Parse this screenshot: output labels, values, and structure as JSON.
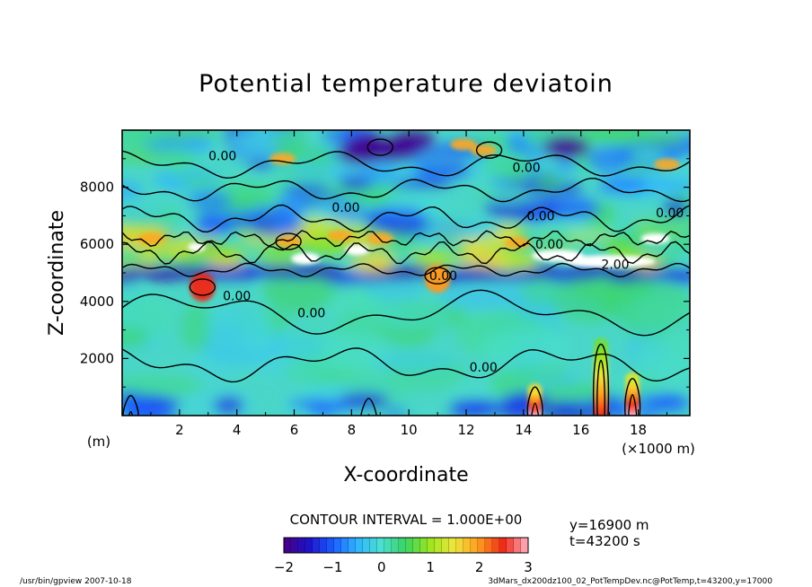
{
  "chart_data": {
    "type": "heatmap",
    "title": "Potential temperature deviatoin",
    "xlabel": "X-coordinate",
    "ylabel": "Z-coordinate",
    "x_unit_note": "(×1000 m)",
    "y_unit_note": "(m)",
    "xlim": [
      0,
      19.8
    ],
    "ylim": [
      0,
      10000
    ],
    "x_ticks": [
      "2",
      "4",
      "6",
      "8",
      "10",
      "12",
      "14",
      "16",
      "18"
    ],
    "x_tick_values": [
      2,
      4,
      6,
      8,
      10,
      12,
      14,
      16,
      18
    ],
    "y_ticks": [
      "2000",
      "4000",
      "6000",
      "8000"
    ],
    "y_tick_values": [
      2000,
      4000,
      6000,
      8000
    ],
    "contour_labels": [
      {
        "text": "0.00",
        "x": 3.5,
        "z": 9100
      },
      {
        "text": "0.00",
        "x": 14.1,
        "z": 8700
      },
      {
        "text": "0.00",
        "x": 7.8,
        "z": 7300
      },
      {
        "text": "0.00",
        "x": 14.6,
        "z": 7000
      },
      {
        "text": "0.00",
        "x": 19.1,
        "z": 7100
      },
      {
        "text": "0.00",
        "x": 14.9,
        "z": 6000
      },
      {
        "text": "2.00",
        "x": 17.2,
        "z": 5300
      },
      {
        "text": "0.00",
        "x": 11.2,
        "z": 4900
      },
      {
        "text": "0.00",
        "x": 4.0,
        "z": 4200
      },
      {
        "text": "0.00",
        "x": 6.6,
        "z": 3600
      },
      {
        "text": "0.00",
        "x": 12.6,
        "z": 1700
      }
    ],
    "contour_interval_text": "CONTOUR INTERVAL = 1.000E+00",
    "annotations": [
      "y=16900 m",
      "t=43200 s"
    ],
    "colorbar": {
      "min": -2,
      "max": 3,
      "tick_labels": [
        "−2",
        "−1",
        "0",
        "1",
        "2",
        "3"
      ],
      "tick_values": [
        -2,
        -1,
        0,
        1,
        2,
        3
      ]
    },
    "features": [
      {
        "desc": "warm plume",
        "x": 14.4,
        "z_top": 1000,
        "value": 3
      },
      {
        "desc": "warm plume",
        "x": 16.7,
        "z_top": 2500,
        "value": 2.5
      },
      {
        "desc": "warm plume",
        "x": 17.8,
        "z_top": 1300,
        "value": 3
      },
      {
        "desc": "warm patch",
        "x": 2.8,
        "z_top": 5000,
        "value": 2.5
      },
      {
        "desc": "warm patch",
        "x": 11.0,
        "z_top": 5300,
        "value": 2
      },
      {
        "desc": "cold band",
        "x": 9.0,
        "z_top": 9800,
        "value": -2
      },
      {
        "desc": "saturated band",
        "x": 17.0,
        "z_top": 5800,
        "value": 3
      }
    ]
  },
  "footer": {
    "left": "/usr/bin/gpview  2007-10-18",
    "right": "3dMars_dx200dz100_02_PotTempDev.nc@PotTemp,t=43200,y=17000"
  }
}
